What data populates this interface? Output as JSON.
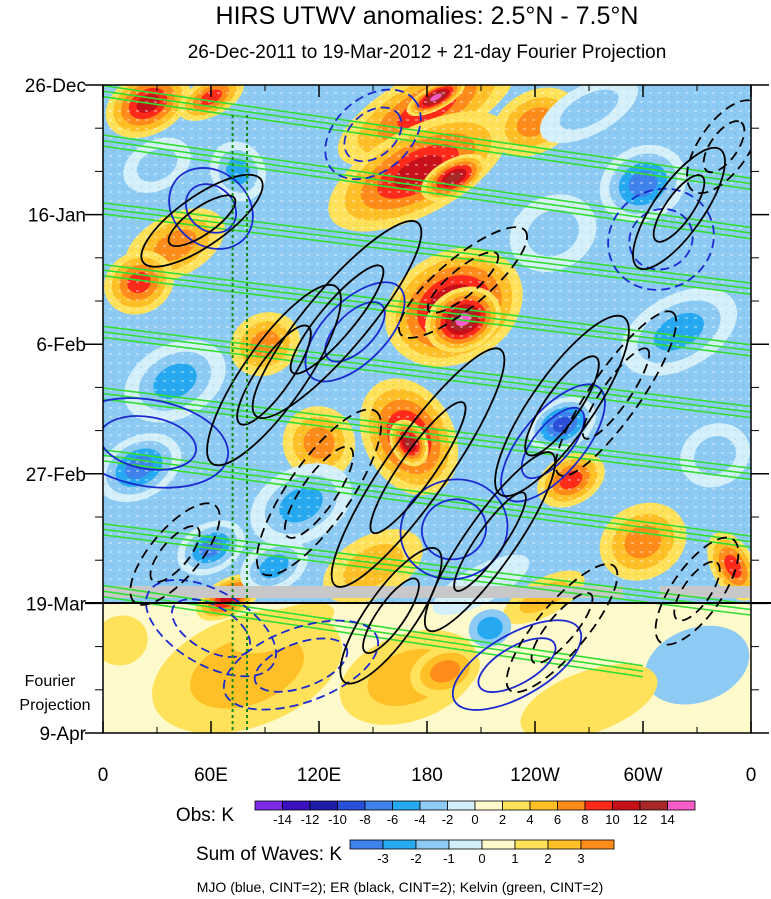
{
  "chart_data": {
    "type": "heatmap",
    "title": "HIRS UTWV anomalies: 2.5°N - 7.5°N",
    "subtitle": "26-Dec-2011 to 19-Mar-2012 + 21-day Fourier Projection",
    "x_ticks": [
      {
        "lon": 0,
        "label": "0"
      },
      {
        "lon": 60,
        "label": "60E"
      },
      {
        "lon": 120,
        "label": "120E"
      },
      {
        "lon": 180,
        "label": "180"
      },
      {
        "lon": 240,
        "label": "120W"
      },
      {
        "lon": 300,
        "label": "60W"
      },
      {
        "lon": 360,
        "label": "0"
      }
    ],
    "xlim": [
      0,
      360
    ],
    "y_ticks": [
      {
        "day": 0,
        "label": "26-Dec"
      },
      {
        "day": 21,
        "label": "16-Jan"
      },
      {
        "day": 42,
        "label": "6-Feb"
      },
      {
        "day": 63,
        "label": "27-Feb"
      },
      {
        "day": 84,
        "label": "19-Mar"
      },
      {
        "day": 105,
        "label": "9-Apr"
      }
    ],
    "ylim": [
      0,
      105
    ],
    "projection_start_day": 84,
    "projection_label": [
      "Fourier",
      "Projection"
    ],
    "reference_longitudes": [
      72,
      80
    ],
    "obs_colorbar": {
      "label": "Obs: K",
      "levels": [
        -14,
        -12,
        -10,
        -8,
        -6,
        -4,
        -2,
        0,
        2,
        4,
        6,
        8,
        10,
        12,
        14
      ],
      "tick_labels": [
        "-14",
        "-12",
        "-10",
        "-8",
        "-6",
        "-4",
        "-2",
        "0",
        "2",
        "4",
        "6",
        "8",
        "10",
        "12",
        "14"
      ],
      "colors": [
        "#7d2be8",
        "#3a10c0",
        "#1c1ca8",
        "#2a4fd8",
        "#3f82ec",
        "#26a9f0",
        "#8ecbf4",
        "#d3effa",
        "#fffacc",
        "#ffe25a",
        "#ffbf26",
        "#ff8c1a",
        "#ff2a1a",
        "#c8101a",
        "#a82828",
        "#f85cc8"
      ]
    },
    "waves_colorbar": {
      "label": "Sum of Waves: K",
      "levels": [
        -3,
        -2,
        -1,
        0,
        1,
        2,
        3
      ],
      "tick_labels": [
        "-3",
        "-2",
        "-1",
        "0",
        "1",
        "2",
        "3"
      ],
      "colors": [
        "#3f82ec",
        "#26a9f0",
        "#8ecbf4",
        "#d3effa",
        "#fffacc",
        "#ffe25a",
        "#ffbf26",
        "#ff8c1a"
      ]
    },
    "legend": "MJO (blue, CINT=2); ER (black, CINT=2); Kelvin (green, CINT=2)",
    "contour_series": [
      {
        "name": "MJO",
        "color": "#1a2ad0",
        "cint": 2
      },
      {
        "name": "ER",
        "color": "#000000",
        "cint": 2
      },
      {
        "name": "Kelvin",
        "color": "#33dd33",
        "cint": 2
      }
    ],
    "kelvin_bands": [
      {
        "lon0": 0,
        "day0": 1.0,
        "lon1": 360,
        "day1": 16.0
      },
      {
        "lon0": 0,
        "day0": 9.0,
        "lon1": 360,
        "day1": 24.0
      },
      {
        "lon0": 0,
        "day0": 20.0,
        "lon1": 360,
        "day1": 33.0
      },
      {
        "lon0": 0,
        "day0": 30.0,
        "lon1": 360,
        "day1": 43.0
      },
      {
        "lon0": 0,
        "day0": 40.0,
        "lon1": 360,
        "day1": 53.0
      },
      {
        "lon0": 0,
        "day0": 50.0,
        "lon1": 360,
        "day1": 63.0
      },
      {
        "lon0": 0,
        "day0": 60.0,
        "lon1": 360,
        "day1": 74.0
      },
      {
        "lon0": 0,
        "day0": 72.0,
        "lon1": 360,
        "day1": 85.0
      },
      {
        "lon0": 0,
        "day0": 82.0,
        "lon1": 300,
        "day1": 95.0
      }
    ],
    "er_contours": [
      {
        "lon": 55,
        "day": 22,
        "rlon": 40,
        "rday": 4,
        "rot": -35,
        "dash": false
      },
      {
        "lon": 95,
        "day": 47,
        "rlon": 60,
        "rday": 5,
        "rot": -55,
        "dash": false
      },
      {
        "lon": 130,
        "day": 38,
        "rlon": 70,
        "rday": 5,
        "rot": -50,
        "dash": false
      },
      {
        "lon": 120,
        "day": 66,
        "rlon": 55,
        "rday": 5,
        "rot": -55,
        "dash": true
      },
      {
        "lon": 175,
        "day": 62,
        "rlon": 80,
        "rday": 5,
        "rot": -55,
        "dash": false
      },
      {
        "lon": 200,
        "day": 32,
        "rlon": 45,
        "rday": 4,
        "rot": -40,
        "dash": true
      },
      {
        "lon": 255,
        "day": 52,
        "rlon": 60,
        "rday": 5,
        "rot": -55,
        "dash": false
      },
      {
        "lon": 285,
        "day": 50,
        "rlon": 55,
        "rday": 4,
        "rot": -55,
        "dash": true
      },
      {
        "lon": 320,
        "day": 20,
        "rlon": 40,
        "rday": 4,
        "rot": -55,
        "dash": false
      },
      {
        "lon": 345,
        "day": 10,
        "rlon": 30,
        "rday": 4,
        "rot": -55,
        "dash": true
      },
      {
        "lon": 160,
        "day": 86,
        "rlon": 45,
        "rday": 4,
        "rot": -55,
        "dash": false
      },
      {
        "lon": 255,
        "day": 88,
        "rlon": 45,
        "rday": 4,
        "rot": -50,
        "dash": true
      },
      {
        "lon": 330,
        "day": 82,
        "rlon": 35,
        "rday": 4,
        "rot": -55,
        "dash": true
      },
      {
        "lon": 40,
        "day": 76,
        "rlon": 35,
        "rday": 4,
        "rot": -50,
        "dash": true
      },
      {
        "lon": 215,
        "day": 74,
        "rlon": 60,
        "rday": 4,
        "rot": -55,
        "dash": false
      }
    ],
    "mjo_contours": [
      {
        "lon": 60,
        "day": 20,
        "rlon": 25,
        "rday": 6,
        "rot": 40,
        "dash": false
      },
      {
        "lon": 25,
        "day": 58,
        "rlon": 45,
        "rday": 7,
        "rot": 10,
        "dash": false
      },
      {
        "lon": 140,
        "day": 40,
        "rlon": 35,
        "rday": 5,
        "rot": -45,
        "dash": false
      },
      {
        "lon": 195,
        "day": 72,
        "rlon": 30,
        "rday": 8,
        "rot": -20,
        "dash": false
      },
      {
        "lon": 250,
        "day": 58,
        "rlon": 40,
        "rday": 5,
        "rot": -50,
        "dash": false
      },
      {
        "lon": 310,
        "day": 25,
        "rlon": 30,
        "rday": 8,
        "rot": -30,
        "dash": true
      },
      {
        "lon": 60,
        "day": 88,
        "rlon": 40,
        "rday": 6,
        "rot": 30,
        "dash": true
      },
      {
        "lon": 110,
        "day": 94,
        "rlon": 45,
        "rday": 6,
        "rot": -20,
        "dash": true
      },
      {
        "lon": 230,
        "day": 94,
        "rlon": 40,
        "rday": 5,
        "rot": -30,
        "dash": false
      },
      {
        "lon": 150,
        "day": 8,
        "rlon": 30,
        "rday": 6,
        "rot": -40,
        "dash": true
      }
    ],
    "anomaly_blobs": [
      {
        "lon": 25,
        "day": 3,
        "rlon": 25,
        "rday": 5,
        "level": 10
      },
      {
        "lon": 60,
        "day": 2,
        "rlon": 20,
        "rday": 3,
        "level": 8
      },
      {
        "lon": 180,
        "day": 4,
        "rlon": 55,
        "rday": 6,
        "level": 8
      },
      {
        "lon": 185,
        "day": 2,
        "rlon": 18,
        "rday": 2,
        "level": 14
      },
      {
        "lon": 175,
        "day": 14,
        "rlon": 55,
        "rday": 7,
        "level": 10
      },
      {
        "lon": 195,
        "day": 15,
        "rlon": 20,
        "rday": 3,
        "level": 12
      },
      {
        "lon": 240,
        "day": 6,
        "rlon": 25,
        "rday": 5,
        "level": 6
      },
      {
        "lon": 40,
        "day": 26,
        "rlon": 30,
        "rday": 5,
        "level": 6
      },
      {
        "lon": 195,
        "day": 36,
        "rlon": 40,
        "rday": 9,
        "level": 12
      },
      {
        "lon": 200,
        "day": 38,
        "rlon": 22,
        "rday": 5,
        "level": 14
      },
      {
        "lon": 170,
        "day": 57,
        "rlon": 25,
        "rday": 10,
        "level": 10
      },
      {
        "lon": 170,
        "day": 58,
        "rlon": 10,
        "rday": 4,
        "level": 12
      },
      {
        "lon": 120,
        "day": 58,
        "rlon": 20,
        "rday": 6,
        "level": 6
      },
      {
        "lon": 20,
        "day": 32,
        "rlon": 20,
        "rday": 5,
        "level": 8
      },
      {
        "lon": 90,
        "day": 42,
        "rlon": 20,
        "rday": 5,
        "level": 6
      },
      {
        "lon": 260,
        "day": 64,
        "rlon": 20,
        "rday": 4,
        "level": 8
      },
      {
        "lon": 300,
        "day": 74,
        "rlon": 25,
        "rday": 6,
        "level": 6
      },
      {
        "lon": 350,
        "day": 78,
        "rlon": 12,
        "rday": 6,
        "level": 8
      },
      {
        "lon": 70,
        "day": 83,
        "rlon": 20,
        "rday": 3,
        "level": 10
      },
      {
        "lon": 150,
        "day": 78,
        "rlon": 30,
        "rday": 5,
        "level": 4
      },
      {
        "lon": 245,
        "day": 83,
        "rlon": 25,
        "rday": 3,
        "level": 4
      },
      {
        "lon": 75,
        "day": 14,
        "rlon": 15,
        "rday": 5,
        "level": -6
      },
      {
        "lon": 40,
        "day": 48,
        "rlon": 30,
        "rday": 6,
        "level": -6
      },
      {
        "lon": 20,
        "day": 62,
        "rlon": 25,
        "rday": 5,
        "level": -8
      },
      {
        "lon": 110,
        "day": 68,
        "rlon": 30,
        "rday": 6,
        "level": -6
      },
      {
        "lon": 300,
        "day": 16,
        "rlon": 25,
        "rday": 6,
        "level": -8
      },
      {
        "lon": 320,
        "day": 40,
        "rlon": 35,
        "rday": 6,
        "level": -6
      },
      {
        "lon": 255,
        "day": 55,
        "rlon": 20,
        "rday": 4,
        "level": -10
      },
      {
        "lon": 250,
        "day": 24,
        "rlon": 25,
        "rday": 6,
        "level": -4
      },
      {
        "lon": 340,
        "day": 60,
        "rlon": 20,
        "rday": 5,
        "level": -4
      },
      {
        "lon": 60,
        "day": 75,
        "rlon": 20,
        "rday": 4,
        "level": -8
      },
      {
        "lon": 95,
        "day": 78,
        "rlon": 20,
        "rday": 4,
        "level": -6
      },
      {
        "lon": 270,
        "day": 4,
        "rlon": 30,
        "rday": 4,
        "level": -4
      },
      {
        "lon": 30,
        "day": 13,
        "rlon": 20,
        "rday": 4,
        "level": -4
      },
      {
        "lon": 210,
        "day": 81,
        "rlon": 30,
        "rday": 3,
        "level": -2
      }
    ],
    "projection_blobs": [
      {
        "lon": 80,
        "day": 95,
        "rlon": 55,
        "rday": 9,
        "level": 2
      },
      {
        "lon": 170,
        "day": 96,
        "rlon": 40,
        "rday": 7,
        "level": 2
      },
      {
        "lon": 190,
        "day": 95,
        "rlon": 20,
        "rday": 4,
        "level": 3
      },
      {
        "lon": 215,
        "day": 88,
        "rlon": 12,
        "rday": 3,
        "level": -2
      },
      {
        "lon": 330,
        "day": 94,
        "rlon": 30,
        "rday": 6,
        "level": -1
      },
      {
        "lon": 10,
        "day": 90,
        "rlon": 15,
        "rday": 4,
        "level": 1
      },
      {
        "lon": 270,
        "day": 100,
        "rlon": 40,
        "rday": 5,
        "level": 1
      },
      {
        "lon": 100,
        "day": 88,
        "rlon": 30,
        "rday": 3,
        "level": 1
      }
    ]
  }
}
